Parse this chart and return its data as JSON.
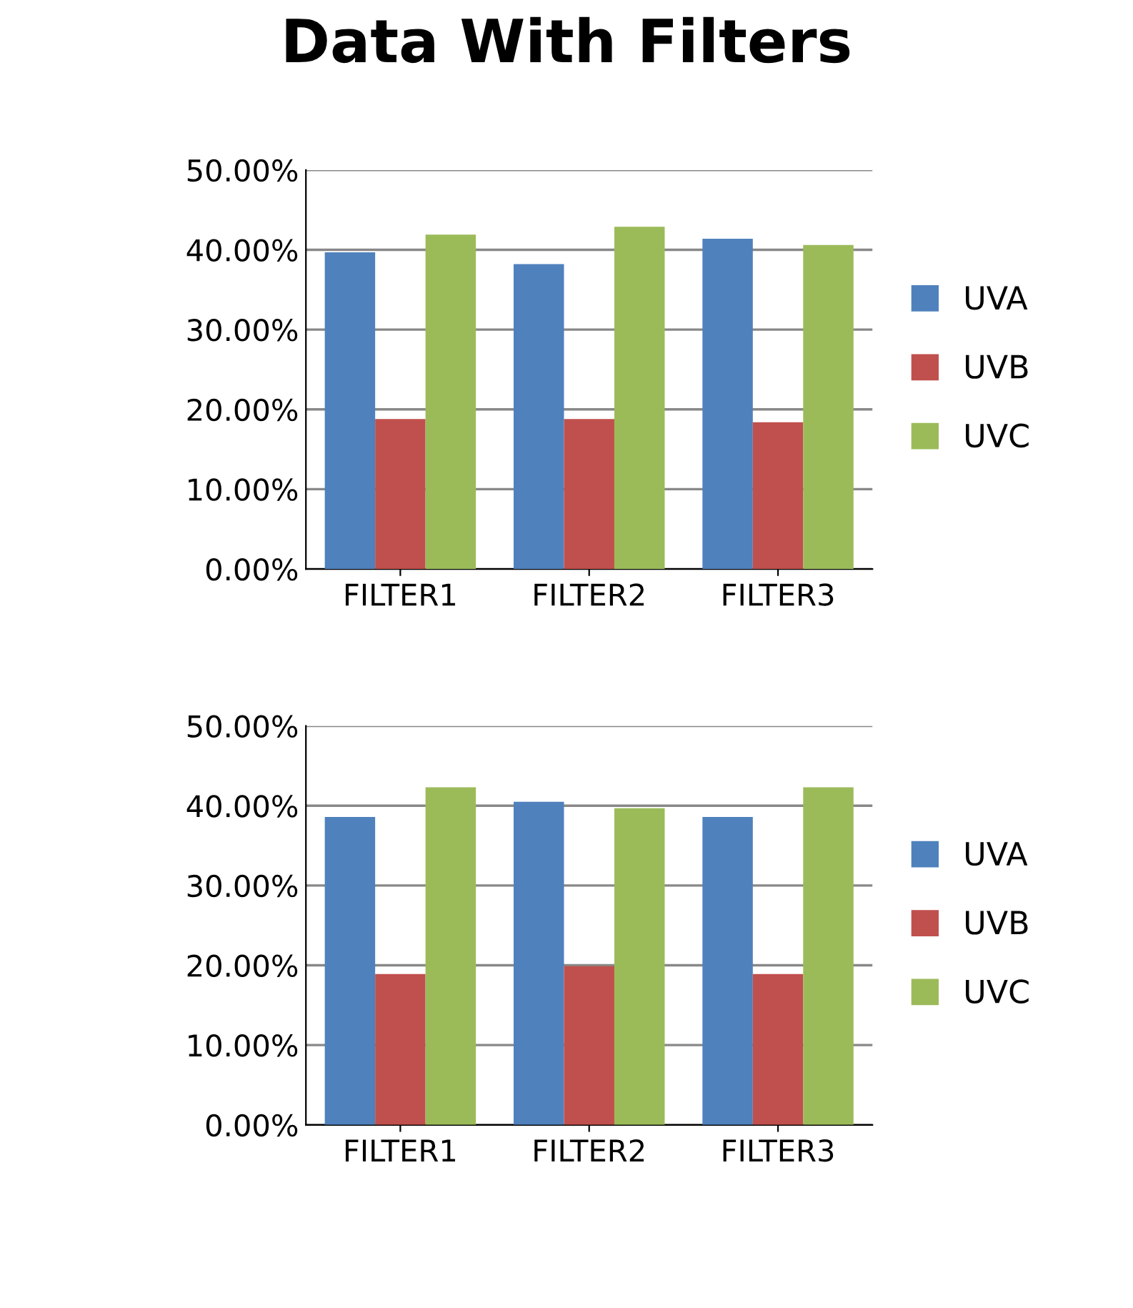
{
  "chart_data": [
    {
      "type": "bar",
      "title": "Data With Filters",
      "categories": [
        "FILTER1",
        "FILTER2",
        "FILTER3"
      ],
      "series": [
        {
          "name": "UVA",
          "color": "#4f81bd",
          "values": [
            39.7,
            38.2,
            41.4
          ]
        },
        {
          "name": "UVB",
          "color": "#c0504d",
          "values": [
            18.8,
            18.8,
            18.4
          ]
        },
        {
          "name": "UVC",
          "color": "#9bbb59",
          "values": [
            41.9,
            42.9,
            40.6
          ]
        }
      ],
      "ylim": [
        0,
        50
      ],
      "yticks": [
        {
          "value": 0,
          "label": "0.00%"
        },
        {
          "value": 10,
          "label": "10.00%"
        },
        {
          "value": 20,
          "label": "20.00%"
        },
        {
          "value": 30,
          "label": "30.00%"
        },
        {
          "value": 40,
          "label": "40.00%"
        },
        {
          "value": 50,
          "label": "50.00%"
        }
      ],
      "grid": "y",
      "legend": "right"
    },
    {
      "type": "bar",
      "categories": [
        "FILTER1",
        "FILTER2",
        "FILTER3"
      ],
      "series": [
        {
          "name": "UVA",
          "color": "#4f81bd",
          "values": [
            38.6,
            40.5,
            38.6
          ]
        },
        {
          "name": "UVB",
          "color": "#c0504d",
          "values": [
            18.9,
            19.9,
            18.9
          ]
        },
        {
          "name": "UVC",
          "color": "#9bbb59",
          "values": [
            42.3,
            39.7,
            42.3
          ]
        }
      ],
      "ylim": [
        0,
        50
      ],
      "yticks": [
        {
          "value": 0,
          "label": "0.00%"
        },
        {
          "value": 10,
          "label": "10.00%"
        },
        {
          "value": 20,
          "label": "20.00%"
        },
        {
          "value": 30,
          "label": "30.00%"
        },
        {
          "value": 40,
          "label": "40.00%"
        },
        {
          "value": 50,
          "label": "50.00%"
        }
      ],
      "grid": "y",
      "legend": "right"
    }
  ]
}
